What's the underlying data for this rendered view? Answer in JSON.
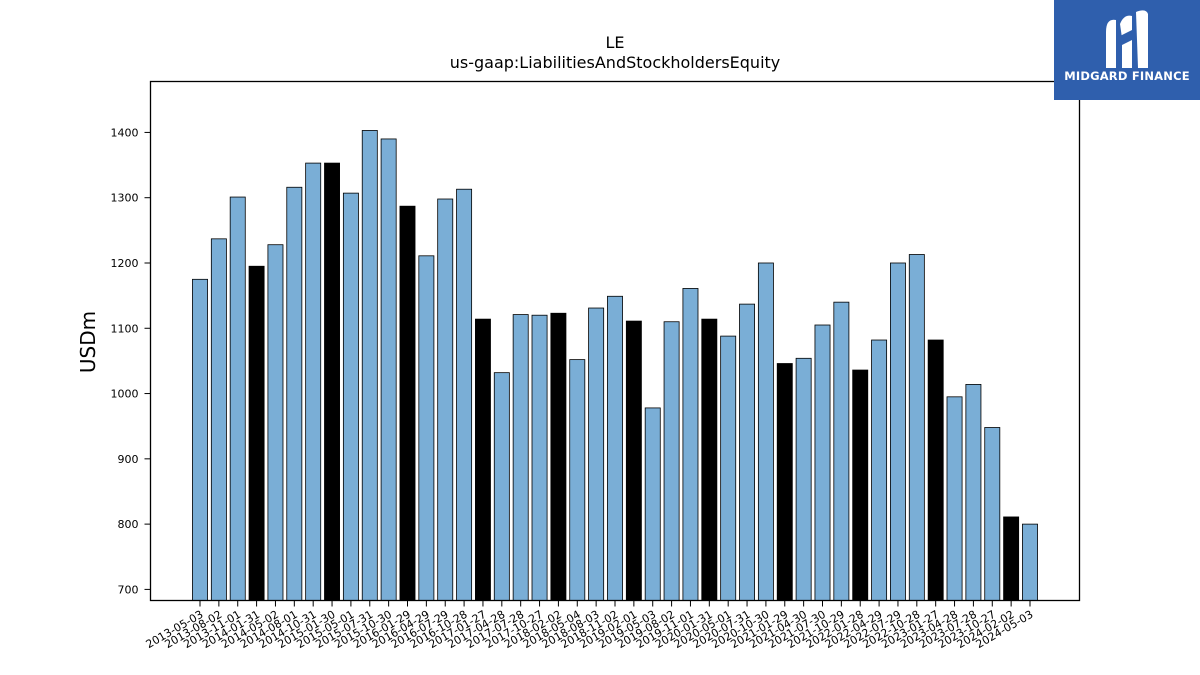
{
  "chart_data": {
    "type": "bar",
    "title": "LE",
    "subtitle": "us-gaap:LiabilitiesAndStockholdersEquity",
    "ylabel": "USDm",
    "xlabel": "",
    "ylim": [
      683,
      1478
    ],
    "yticks": [
      700,
      800,
      900,
      1000,
      1100,
      1200,
      1300,
      1400
    ],
    "grid": false,
    "colors": {
      "regular": "#7aaed6",
      "highlight": "#000000",
      "edge": "#000000"
    },
    "categories": [
      "2013-05-03",
      "2013-08-02",
      "2013-11-01",
      "2014-01-31",
      "2014-05-02",
      "2014-08-01",
      "2014-10-31",
      "2015-01-30",
      "2015-05-01",
      "2015-07-31",
      "2015-10-30",
      "2016-01-29",
      "2016-04-29",
      "2016-07-29",
      "2016-10-28",
      "2017-01-27",
      "2017-04-28",
      "2017-07-28",
      "2017-10-27",
      "2018-02-02",
      "2018-05-04",
      "2018-08-03",
      "2018-11-02",
      "2019-02-01",
      "2019-05-03",
      "2019-08-02",
      "2019-11-01",
      "2020-01-31",
      "2020-05-01",
      "2020-07-31",
      "2020-10-30",
      "2021-01-29",
      "2021-04-30",
      "2021-07-30",
      "2021-10-29",
      "2022-01-28",
      "2022-04-29",
      "2022-07-29",
      "2022-10-28",
      "2023-01-27",
      "2023-04-28",
      "2023-07-28",
      "2023-10-27",
      "2024-02-02",
      "2024-05-03"
    ],
    "values": [
      1175,
      1237,
      1301,
      1195,
      1228,
      1316,
      1353,
      1353,
      1307,
      1403,
      1390,
      1287,
      1211,
      1298,
      1313,
      1114,
      1032,
      1121,
      1120,
      1123,
      1052,
      1131,
      1149,
      1111,
      978,
      1110,
      1161,
      1114,
      1088,
      1137,
      1200,
      1046,
      1054,
      1105,
      1140,
      1036,
      1082,
      1200,
      1213,
      1082,
      995,
      1014,
      948,
      811,
      800
    ],
    "highlighted": [
      false,
      false,
      false,
      true,
      false,
      false,
      false,
      true,
      false,
      false,
      false,
      true,
      false,
      false,
      false,
      true,
      false,
      false,
      false,
      true,
      false,
      false,
      false,
      true,
      false,
      false,
      false,
      true,
      false,
      false,
      false,
      true,
      false,
      false,
      false,
      true,
      false,
      false,
      false,
      true,
      false,
      false,
      false,
      true,
      false
    ]
  },
  "logo": {
    "text": "MIDGARD FINANCE",
    "icon": "midgard-logo-icon"
  }
}
